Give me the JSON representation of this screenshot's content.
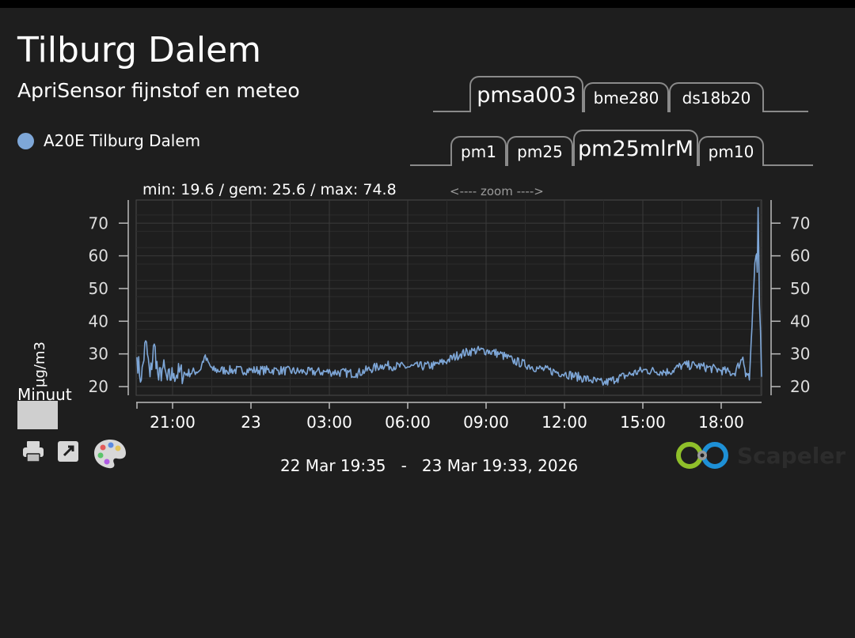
{
  "header": {
    "title": "Tilburg Dalem",
    "subtitle": "ApriSensor fijnstof en meteo"
  },
  "legend": {
    "label": "A20E Tilburg Dalem",
    "color": "#7ea7d8"
  },
  "sensor_tabs": [
    {
      "label": "pmsa003",
      "selected": true
    },
    {
      "label": "bme280",
      "selected": false
    },
    {
      "label": "ds18b20",
      "selected": false
    }
  ],
  "measure_tabs": [
    {
      "label": "pm1",
      "selected": false
    },
    {
      "label": "pm25",
      "selected": false
    },
    {
      "label": "pm25mlrM",
      "selected": true
    },
    {
      "label": "pm10",
      "selected": false
    }
  ],
  "stats": "min: 19.6 / gem: 25.6 / max: 74.8",
  "zoom_hint": "<---- zoom ---->",
  "aggregation_label": "Minuut",
  "date_range": "22 Mar 19:35   -   23 Mar 19:33, 2026",
  "logo_text": "Scapeler",
  "icons": [
    "printer-icon",
    "expand-icon",
    "palette-icon"
  ],
  "chart_data": {
    "type": "line",
    "ylabel": "µg/m3",
    "ylim": [
      18,
      77
    ],
    "yticks": [
      20,
      30,
      40,
      50,
      60,
      70
    ],
    "xlim": [
      "22 Mar 19:35",
      "23 Mar 19:33"
    ],
    "xticks": [
      "21:00",
      "23",
      "03:00",
      "06:00",
      "09:00",
      "12:00",
      "15:00",
      "18:00"
    ],
    "grid": true,
    "color": "#7ea7d8",
    "series": [
      {
        "name": "A20E Tilburg Dalem",
        "points": [
          [
            "19:35",
            29
          ],
          [
            "19:45",
            22
          ],
          [
            "19:55",
            34
          ],
          [
            "20:05",
            23
          ],
          [
            "20:15",
            33
          ],
          [
            "20:25",
            22
          ],
          [
            "20:35",
            26
          ],
          [
            "20:45",
            22
          ],
          [
            "21:00",
            24
          ],
          [
            "21:30",
            24
          ],
          [
            "22:00",
            25
          ],
          [
            "22:10",
            29
          ],
          [
            "22:30",
            25
          ],
          [
            "23:00",
            25
          ],
          [
            "00:00",
            25
          ],
          [
            "01:00",
            25
          ],
          [
            "02:00",
            24.5
          ],
          [
            "03:00",
            24.5
          ],
          [
            "04:00",
            24
          ],
          [
            "05:00",
            26.5
          ],
          [
            "06:00",
            26
          ],
          [
            "07:00",
            26.5
          ],
          [
            "07:30",
            28
          ],
          [
            "08:00",
            30
          ],
          [
            "08:30",
            31
          ],
          [
            "09:00",
            31
          ],
          [
            "09:30",
            30
          ],
          [
            "10:00",
            28
          ],
          [
            "11:00",
            25.5
          ],
          [
            "12:00",
            24
          ],
          [
            "13:00",
            22
          ],
          [
            "13:30",
            21
          ],
          [
            "14:00",
            22.5
          ],
          [
            "15:00",
            25
          ],
          [
            "16:00",
            24.5
          ],
          [
            "16:30",
            26.5
          ],
          [
            "17:00",
            26.5
          ],
          [
            "18:00",
            25
          ],
          [
            "18:30",
            24
          ],
          [
            "18:50",
            29
          ],
          [
            "19:05",
            22
          ],
          [
            "19:15",
            50
          ],
          [
            "19:20",
            60
          ],
          [
            "19:23",
            55
          ],
          [
            "19:25",
            74.8
          ],
          [
            "19:28",
            45
          ],
          [
            "19:33",
            23
          ]
        ]
      }
    ]
  }
}
